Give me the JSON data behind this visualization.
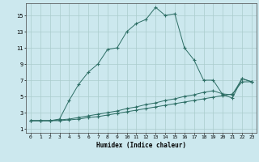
{
  "xlabel": "Humidex (Indice chaleur)",
  "bg_color": "#cce8ee",
  "grid_color": "#aacccc",
  "line_color": "#2d6e65",
  "xlim": [
    -0.5,
    23.5
  ],
  "ylim": [
    0.5,
    16.5
  ],
  "yticks": [
    1,
    3,
    5,
    7,
    9,
    11,
    13,
    15
  ],
  "xticks": [
    0,
    1,
    2,
    3,
    4,
    5,
    6,
    7,
    8,
    9,
    10,
    11,
    12,
    13,
    14,
    15,
    16,
    17,
    18,
    19,
    20,
    21,
    22,
    23
  ],
  "line1_x": [
    0,
    1,
    2,
    3,
    4,
    5,
    6,
    7,
    8,
    9,
    10,
    11,
    12,
    13,
    14,
    15,
    16,
    17,
    18,
    19,
    20,
    21,
    22,
    23
  ],
  "line1_y": [
    2,
    2,
    2,
    2.2,
    4.5,
    6.5,
    8,
    9,
    10.8,
    11,
    13,
    14,
    14.5,
    16,
    15,
    15.2,
    11,
    9.5,
    7,
    7,
    5.2,
    4.8,
    7.2,
    6.8
  ],
  "line2_x": [
    0,
    1,
    2,
    3,
    4,
    5,
    6,
    7,
    8,
    9,
    10,
    11,
    12,
    13,
    14,
    15,
    16,
    17,
    18,
    19,
    20,
    21,
    22,
    23
  ],
  "line2_y": [
    2,
    2,
    2,
    2.1,
    2.2,
    2.4,
    2.6,
    2.8,
    3.0,
    3.2,
    3.5,
    3.7,
    4.0,
    4.2,
    4.5,
    4.7,
    5.0,
    5.2,
    5.5,
    5.7,
    5.3,
    5.2,
    7.2,
    6.8
  ],
  "line3_x": [
    0,
    1,
    2,
    3,
    4,
    5,
    6,
    7,
    8,
    9,
    10,
    11,
    12,
    13,
    14,
    15,
    16,
    17,
    18,
    19,
    20,
    21,
    22,
    23
  ],
  "line3_y": [
    2,
    2,
    2,
    2.0,
    2.1,
    2.2,
    2.4,
    2.5,
    2.7,
    2.9,
    3.1,
    3.3,
    3.5,
    3.7,
    3.9,
    4.1,
    4.3,
    4.5,
    4.7,
    4.9,
    5.1,
    5.3,
    6.8,
    6.8
  ]
}
